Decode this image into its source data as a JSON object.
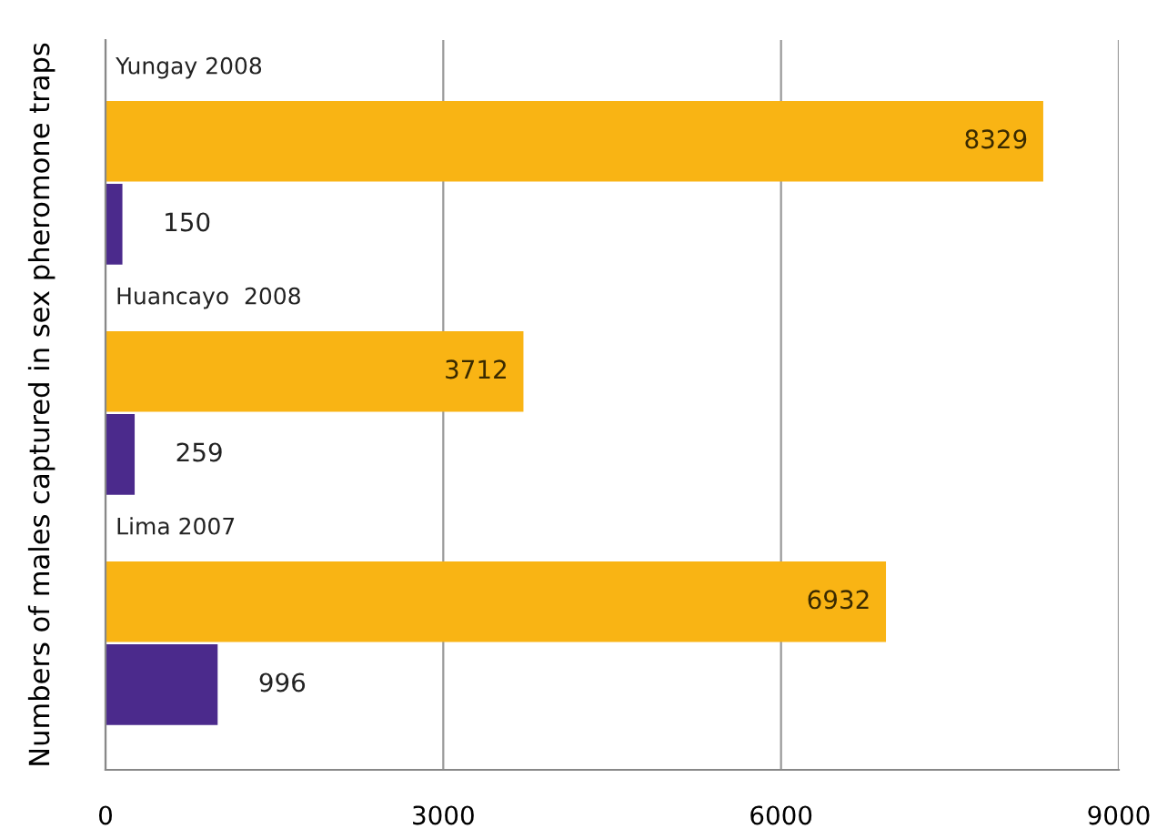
{
  "chart_data": {
    "type": "bar",
    "orientation": "horizontal",
    "ylabel": "Numbers of males captured in sex pheromone traps",
    "categories": [
      "Yungay 2008",
      "Huancayo  2008",
      "Lima 2007"
    ],
    "series": [
      {
        "color": "#f9b414",
        "values": [
          8329,
          3712,
          6932
        ]
      },
      {
        "color": "#4b2a8c",
        "values": [
          150,
          259,
          996
        ]
      }
    ],
    "xlim": [
      0,
      9000
    ],
    "xticks": [
      0,
      3000,
      6000,
      9000
    ],
    "grid": "x",
    "data_labels": true,
    "legend": false
  }
}
